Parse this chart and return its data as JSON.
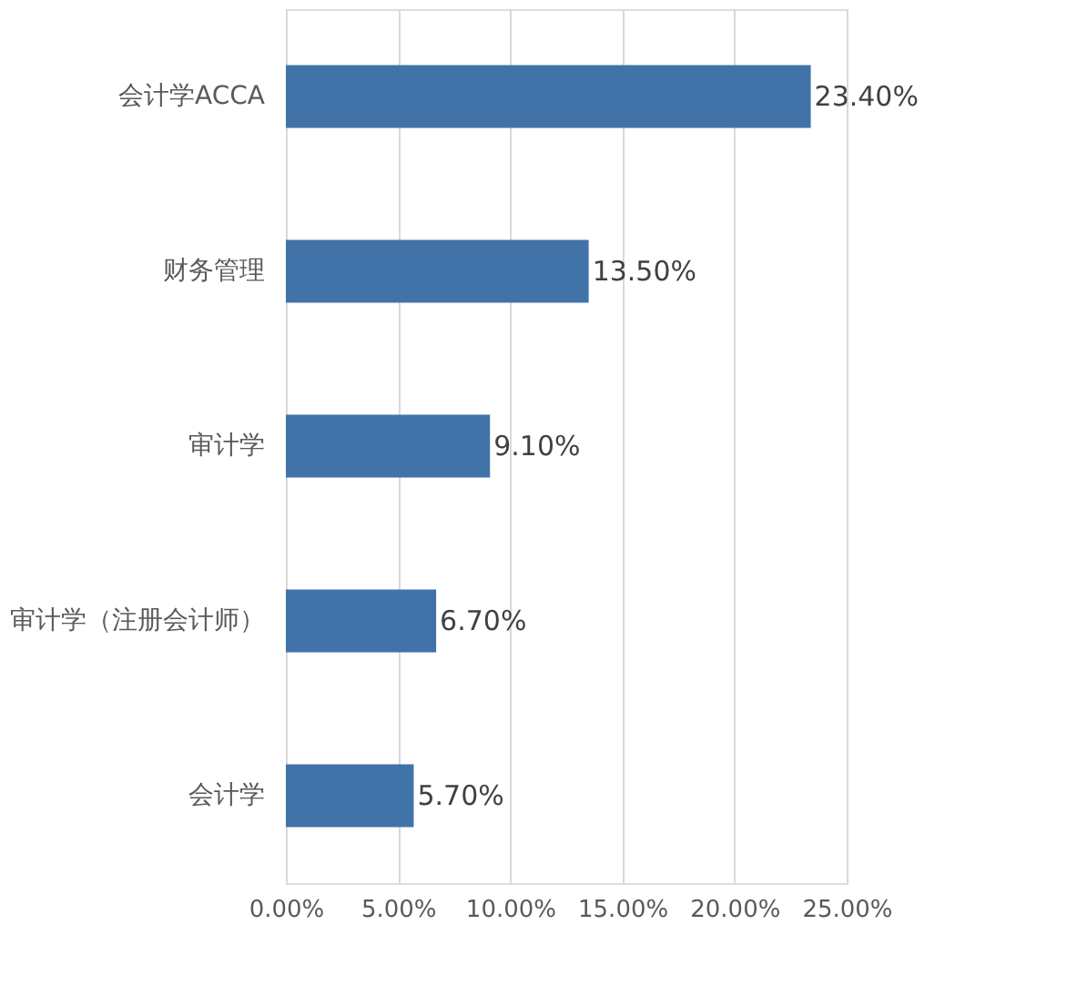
{
  "chart_data": {
    "type": "bar",
    "orientation": "horizontal",
    "categories": [
      "会计学ACCA",
      "财务管理",
      "审计学",
      "审计学（注册会计师）",
      "会计学"
    ],
    "values": [
      23.4,
      13.5,
      9.1,
      6.7,
      5.7
    ],
    "value_labels": [
      "23.40%",
      "13.50%",
      "9.10%",
      "6.70%",
      "5.70%"
    ],
    "color": "#4173a9",
    "xlim": [
      0,
      25
    ],
    "xticks": [
      {
        "value": 0,
        "label": "0.00%"
      },
      {
        "value": 5,
        "label": "5.00%"
      },
      {
        "value": 10,
        "label": "10.00%"
      },
      {
        "value": 15,
        "label": "15.00%"
      },
      {
        "value": 20,
        "label": "20.00%"
      },
      {
        "value": 25,
        "label": "25.00%"
      }
    ],
    "grid": "x"
  }
}
